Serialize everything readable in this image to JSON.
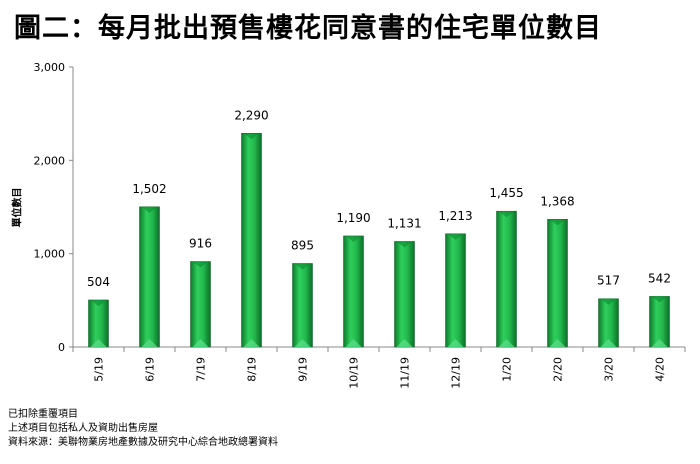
{
  "title": "圖二：每月批出預售樓花同意書的住宅單位數目",
  "notes": [
    "已扣除重覆項目",
    "上述項目包括私人及資助出售房屋",
    "資料來源：美聯物業房地產數據及研究中心綜合地政總署資料"
  ],
  "chart_data": {
    "type": "bar",
    "title": "圖二：每月批出預售樓花同意書的住宅單位數目",
    "xlabel": "",
    "ylabel": "單位數目",
    "categories": [
      "5/19",
      "6/19",
      "7/19",
      "8/19",
      "9/19",
      "10/19",
      "11/19",
      "12/19",
      "1/20",
      "2/20",
      "3/20",
      "4/20"
    ],
    "values": [
      504,
      1502,
      916,
      2290,
      895,
      1190,
      1131,
      1213,
      1455,
      1368,
      517,
      542
    ],
    "data_labels": [
      "504",
      "1,502",
      "916",
      "2,290",
      "895",
      "1,190",
      "1,131",
      "1,213",
      "1,455",
      "1,368",
      "517",
      "542"
    ],
    "ylim": [
      0,
      3000
    ],
    "yticks": [
      0,
      1000,
      2000,
      3000
    ],
    "ytick_labels": [
      "0",
      "1,000",
      "2,000",
      "3,000"
    ],
    "grid": false,
    "bar_color": "#1fae4a"
  }
}
